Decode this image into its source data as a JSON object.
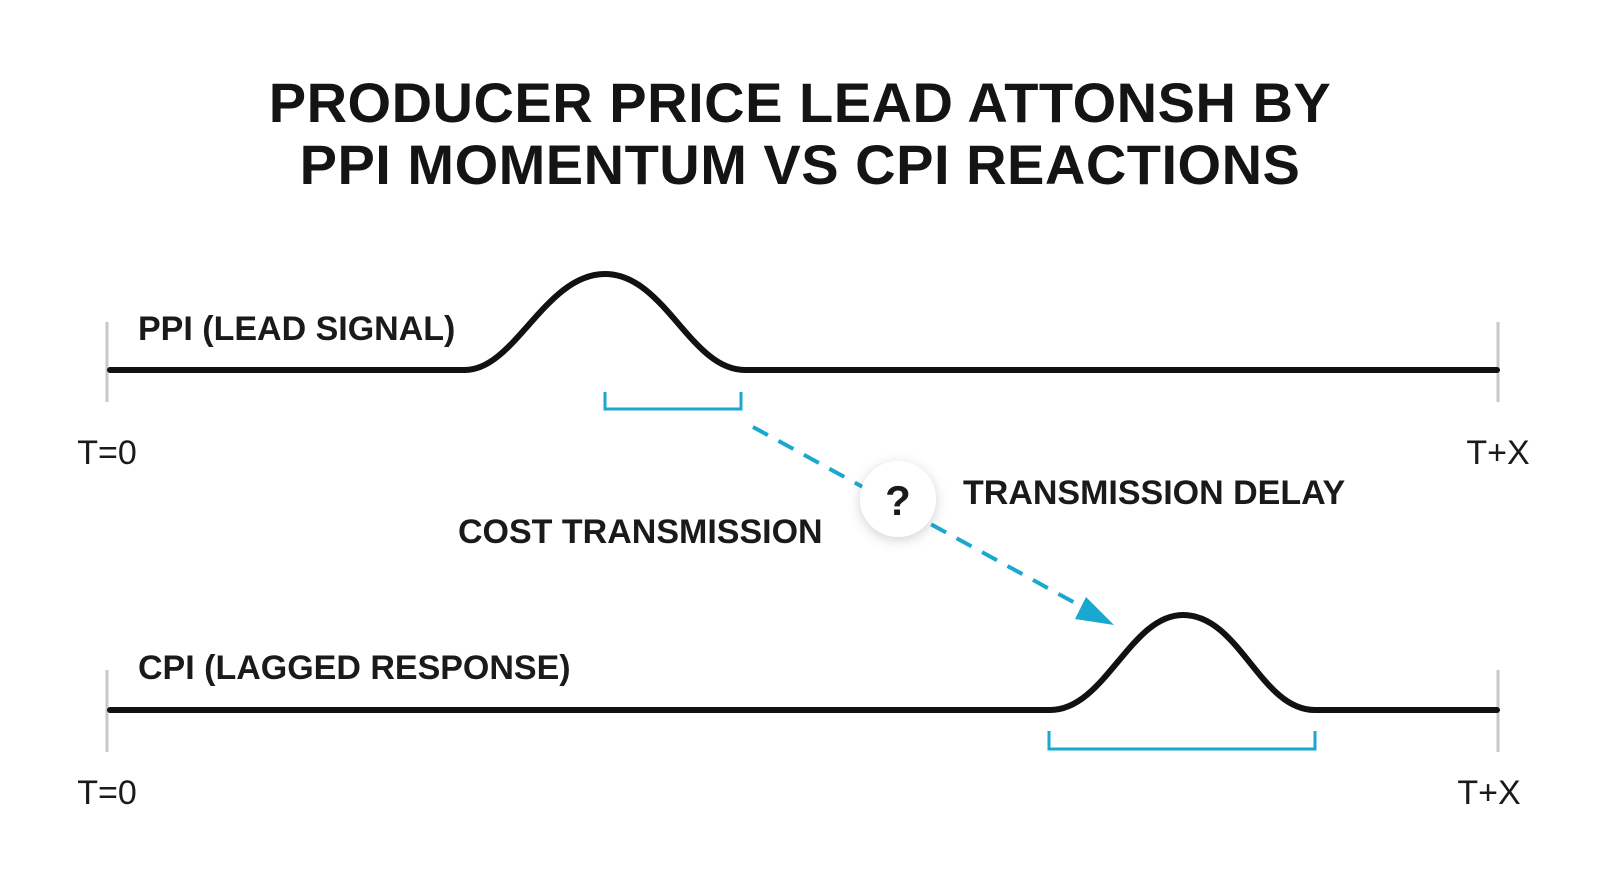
{
  "title": {
    "line1": "PRODUCER PRICE LEAD ATTONSH BY",
    "line2": "PPI MOMENTUM VS CPI REACTIONS"
  },
  "ppi": {
    "label": "PPI (LEAD SIGNAL)",
    "start_label": "T=0",
    "end_label": "T+X"
  },
  "cpi": {
    "label": "CPI (LAGGED RESPONSE)",
    "start_label": "T=0",
    "end_label": "T+X"
  },
  "transmission": {
    "cost_label": "COST TRANSMISSION",
    "delay_label": "TRANSMISSION DELAY",
    "question_mark": "?"
  },
  "colors": {
    "signal_line": "#111111",
    "accent": "#1ba8cf",
    "axis_tick": "#c8c8c8"
  },
  "icons": {
    "question": "question-mark-icon",
    "arrow": "arrow-head-icon"
  }
}
